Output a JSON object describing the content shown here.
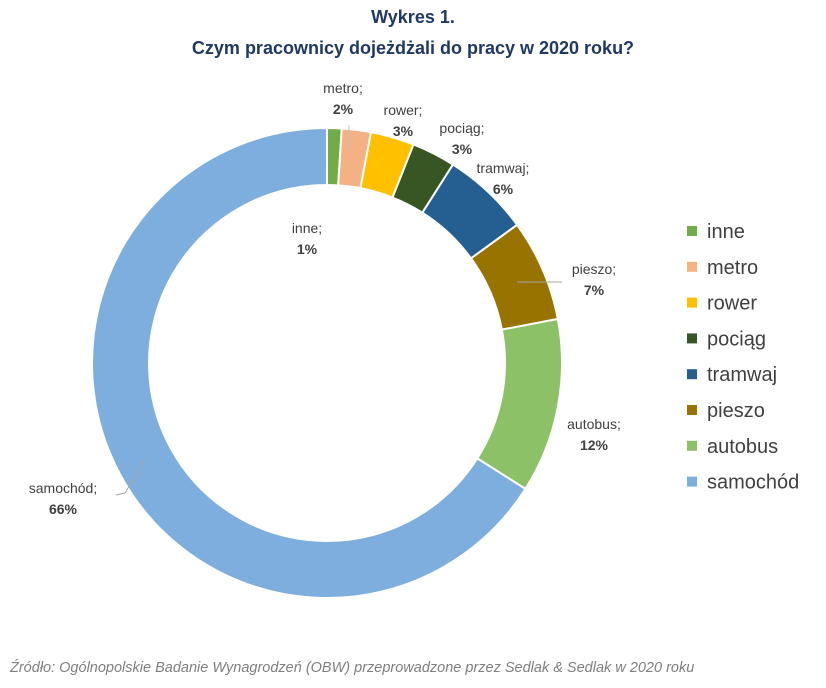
{
  "title_line1": "Wykres 1.",
  "title_line2": "Czym pracownicy dojeżdżali do pracy w 2020 roku?",
  "source": "Źródło: Ogólnopolskie Badanie Wynagrodzeń (OBW) przeprowadzone przez Sedlak & Sedlak w 2020 roku",
  "chart_data": {
    "type": "pie",
    "variant": "donut",
    "title": "Czym pracownicy dojeżdżali do pracy w 2020 roku?",
    "legend_position": "right",
    "slices": [
      {
        "name": "inne",
        "label": "inne;",
        "pct_label": "1%",
        "value": 1,
        "color": "#70ad47"
      },
      {
        "name": "metro",
        "label": "metro;",
        "pct_label": "2%",
        "value": 2,
        "color": "#f4b183"
      },
      {
        "name": "rower",
        "label": "rower;",
        "pct_label": "3%",
        "value": 3,
        "color": "#ffc000"
      },
      {
        "name": "pociąg",
        "label": "pociąg;",
        "pct_label": "3%",
        "value": 3,
        "color": "#375623"
      },
      {
        "name": "tramwaj",
        "label": "tramwaj;",
        "pct_label": "6%",
        "value": 6,
        "color": "#255e91"
      },
      {
        "name": "pieszo",
        "label": "pieszo;",
        "pct_label": "7%",
        "value": 7,
        "color": "#997300"
      },
      {
        "name": "autobus",
        "label": "autobus;",
        "pct_label": "12%",
        "value": 12,
        "color": "#8cc168"
      },
      {
        "name": "samochód",
        "label": "samochód;",
        "pct_label": "66%",
        "value": 66,
        "color": "#7eaedd"
      }
    ]
  }
}
